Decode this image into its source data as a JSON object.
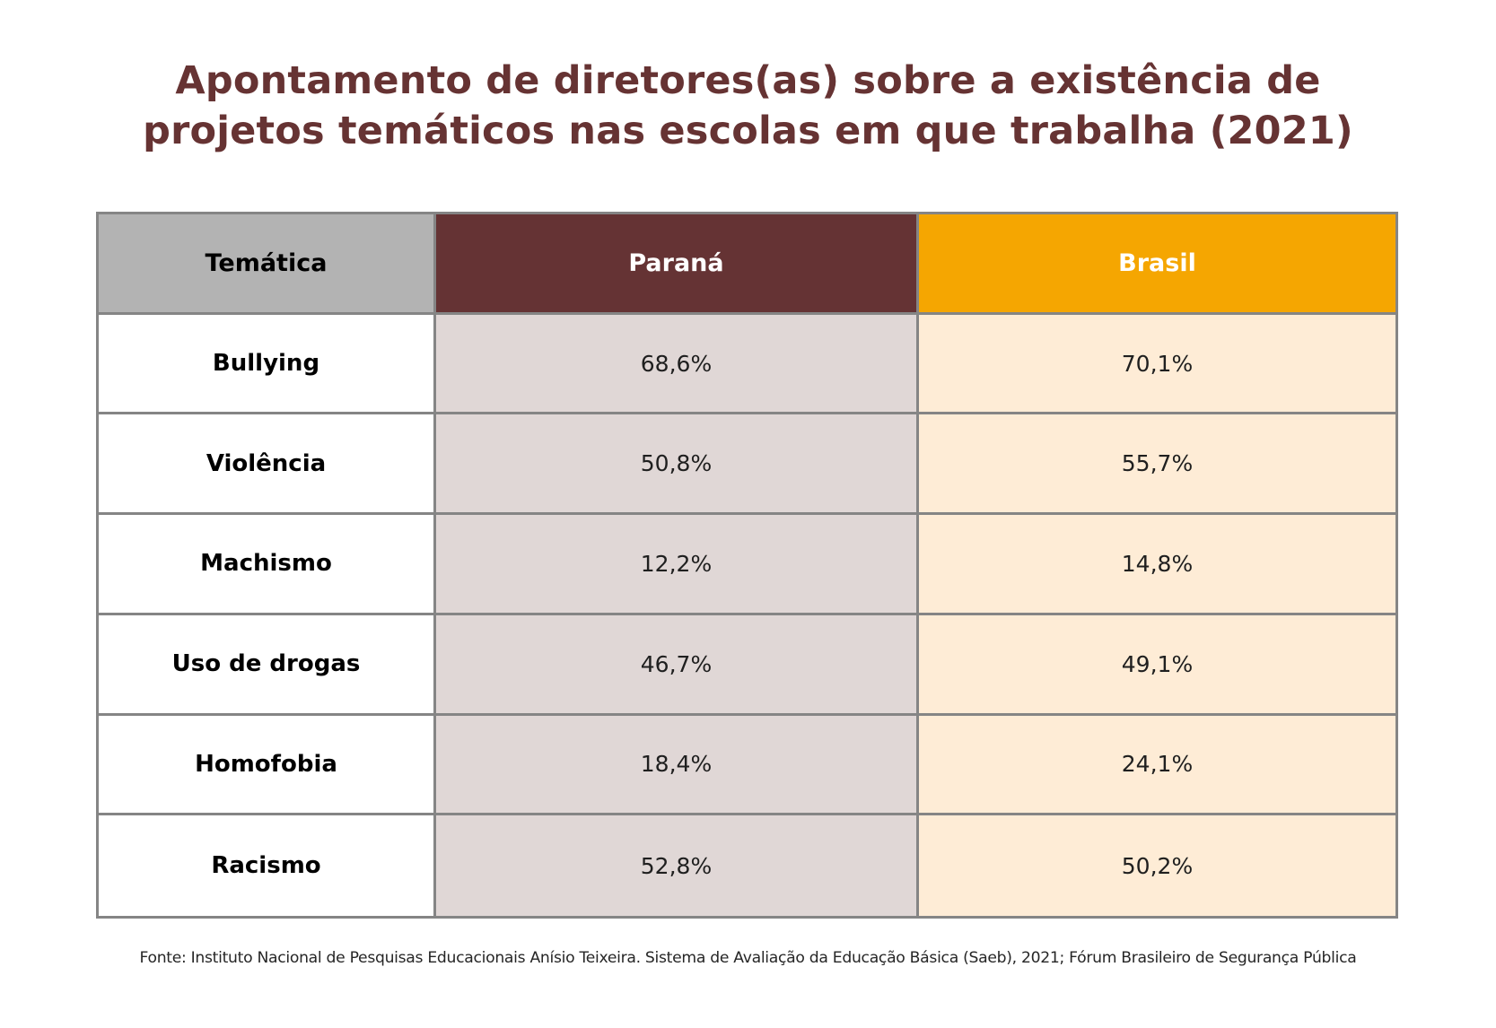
{
  "title": {
    "line1": "Apontamento de diretores(as) sobre a existência de",
    "line2": "projetos temáticos nas escolas em que trabalha (2021)"
  },
  "colors": {
    "title": "#663333",
    "header_tematica": "#b3b3b3",
    "header_parana": "#653334",
    "header_brasil": "#f5a601",
    "cell_parana": "#e0d7d6",
    "cell_brasil": "#feecd6",
    "border": "#858585"
  },
  "chart_data": {
    "type": "table",
    "title": "Apontamento de diretores(as) sobre a existência de projetos temáticos nas escolas em que trabalha (2021)",
    "columns": [
      "Temática",
      "Paraná",
      "Brasil"
    ],
    "rows": [
      {
        "tematica": "Bullying",
        "parana": "68,6%",
        "brasil": "70,1%"
      },
      {
        "tematica": "Violência",
        "parana": "50,8%",
        "brasil": "55,7%"
      },
      {
        "tematica": "Machismo",
        "parana": "12,2%",
        "brasil": "14,8%"
      },
      {
        "tematica": "Uso de drogas",
        "parana": "46,7%",
        "brasil": "49,1%"
      },
      {
        "tematica": "Homofobia",
        "parana": "18,4%",
        "brasil": "24,1%"
      },
      {
        "tematica": "Racismo",
        "parana": "52,8%",
        "brasil": "50,2%"
      }
    ],
    "categories": [
      "Bullying",
      "Violência",
      "Machismo",
      "Uso de drogas",
      "Homofobia",
      "Racismo"
    ],
    "series": [
      {
        "name": "Paraná",
        "values": [
          68.6,
          50.8,
          12.2,
          46.7,
          18.4,
          52.8
        ]
      },
      {
        "name": "Brasil",
        "values": [
          70.1,
          55.7,
          14.8,
          49.1,
          24.1,
          50.2
        ]
      }
    ],
    "unit": "%"
  },
  "source": "Fonte: Instituto Nacional de Pesquisas Educacionais Anísio Teixeira. Sistema de Avaliação da Educação Básica (Saeb), 2021; Fórum Brasileiro de Segurança Pública"
}
